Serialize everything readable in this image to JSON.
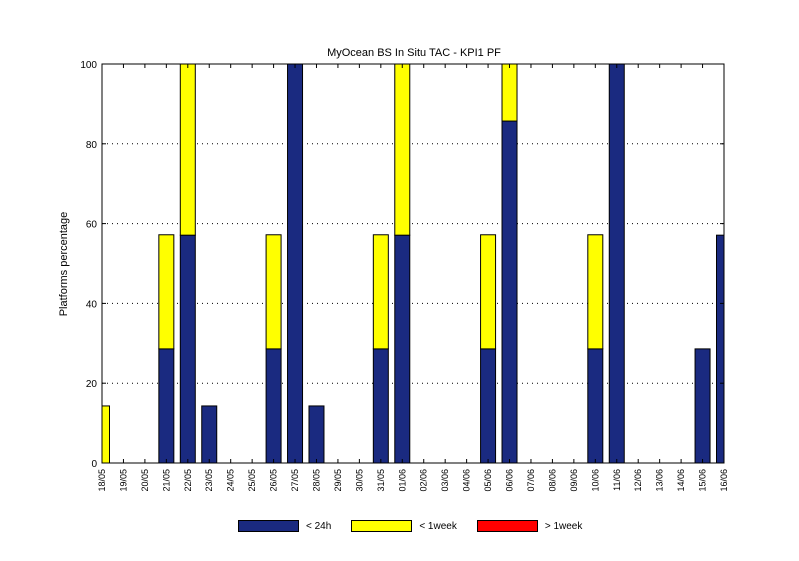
{
  "chart_data": {
    "type": "bar",
    "stacked": true,
    "title": "MyOcean  BS In Situ TAC - KPI1  PF",
    "xlabel": "",
    "ylabel": "Platforms percentage",
    "ylim": [
      0,
      100
    ],
    "yticks": [
      0,
      20,
      40,
      60,
      80,
      100
    ],
    "grid": "horizontal-dotted",
    "legend_position": "bottom",
    "categories": [
      "18/05",
      "19/05",
      "20/05",
      "21/05",
      "22/05",
      "23/05",
      "24/05",
      "25/05",
      "26/05",
      "27/05",
      "28/05",
      "29/05",
      "30/05",
      "31/05",
      "01/06",
      "02/06",
      "03/06",
      "04/06",
      "05/06",
      "06/06",
      "07/06",
      "08/06",
      "09/06",
      "10/06",
      "11/06",
      "12/06",
      "13/06",
      "14/06",
      "15/06",
      "16/06"
    ],
    "series": [
      {
        "name": "< 24h",
        "color": "#1a2a80",
        "values": [
          0,
          0,
          0,
          28.6,
          57.1,
          14.3,
          0,
          0,
          28.6,
          100,
          14.3,
          0,
          0,
          28.6,
          57.1,
          0,
          0,
          0,
          28.6,
          85.7,
          0,
          0,
          0,
          28.6,
          100,
          0,
          0,
          0,
          28.6,
          57.1
        ]
      },
      {
        "name": "< 1week",
        "color": "#ffff00",
        "values": [
          14.3,
          0,
          0,
          28.6,
          42.9,
          0,
          0,
          0,
          28.6,
          0,
          0,
          0,
          0,
          28.6,
          42.9,
          0,
          0,
          0,
          28.6,
          14.3,
          0,
          0,
          0,
          28.6,
          0,
          0,
          0,
          0,
          0,
          0
        ]
      },
      {
        "name": "> 1week",
        "color": "#ff0000",
        "values": [
          0,
          0,
          0,
          0,
          0,
          0,
          0,
          0,
          0,
          0,
          0,
          0,
          0,
          0,
          0,
          0,
          0,
          0,
          0,
          0,
          0,
          0,
          0,
          0,
          0,
          0,
          0,
          0,
          0,
          0
        ]
      }
    ]
  }
}
